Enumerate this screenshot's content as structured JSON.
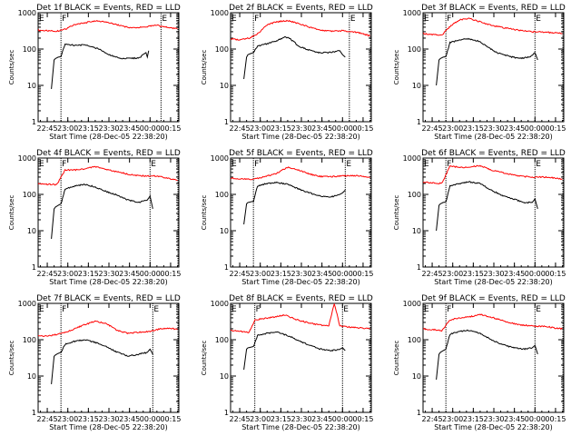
{
  "chart_data": [
    {
      "type": "line",
      "title": "Det 1f BLACK = Events, RED = LLD",
      "ylabel": "Counts/sec",
      "xlabel": "Start Time (28-Dec-05 22:38:20)",
      "x_ticks": [
        "22:45",
        "23:00",
        "23:15",
        "23:30",
        "23:45",
        "00:00",
        "00:15"
      ],
      "y_ticks": [
        "1",
        "10",
        "100",
        "1000"
      ],
      "ylim": [
        1,
        1000
      ],
      "y_scale": "log",
      "markers": [
        {
          "label": "E",
          "x": "22:38"
        },
        {
          "label": "F",
          "x": "22:55"
        },
        {
          "label": "E",
          "x": "00:08"
        }
      ],
      "series": [
        {
          "color": "#ff0000",
          "x": [
            "22:38",
            "22:45",
            "22:52",
            "22:58",
            "23:05",
            "23:12",
            "23:20",
            "23:28",
            "23:38",
            "23:46",
            "23:55",
            "00:05",
            "00:10",
            "00:16",
            "00:20"
          ],
          "y": [
            330,
            320,
            310,
            350,
            470,
            520,
            600,
            550,
            450,
            380,
            400,
            450,
            410,
            380,
            360
          ]
        },
        {
          "color": "#000000",
          "x": [
            "22:48",
            "22:50",
            "22:51",
            "22:53",
            "22:55",
            "22:58",
            "23:05",
            "23:12",
            "23:18",
            "23:24",
            "23:30",
            "23:38",
            "23:45",
            "23:52",
            "23:57",
            "23:58",
            "23:59"
          ],
          "y": [
            8,
            50,
            55,
            60,
            62,
            140,
            125,
            130,
            115,
            95,
            70,
            55,
            55,
            57,
            80,
            60,
            90
          ]
        }
      ]
    },
    {
      "type": "line",
      "title": "Det 2f BLACK = Events, RED = LLD",
      "ylabel": "Counts/sec",
      "xlabel": "Start Time (28-Dec-05 22:38:20)",
      "x_ticks": [
        "22:45",
        "23:00",
        "23:15",
        "23:30",
        "23:45",
        "00:00",
        "00:15"
      ],
      "y_ticks": [
        "1",
        "10",
        "100",
        "1000"
      ],
      "ylim": [
        1,
        1000
      ],
      "y_scale": "log",
      "markers": [
        {
          "label": "E",
          "x": "22:38"
        },
        {
          "label": "F",
          "x": "22:55"
        },
        {
          "label": "E",
          "x": "00:05"
        }
      ],
      "series": [
        {
          "color": "#ff0000",
          "x": [
            "22:38",
            "22:45",
            "22:52",
            "22:58",
            "23:05",
            "23:12",
            "23:20",
            "23:28",
            "23:36",
            "23:44",
            "23:52",
            "00:00",
            "00:08",
            "00:14",
            "00:20"
          ],
          "y": [
            190,
            180,
            200,
            260,
            470,
            560,
            610,
            500,
            400,
            330,
            310,
            320,
            300,
            270,
            230
          ]
        },
        {
          "color": "#000000",
          "x": [
            "22:48",
            "22:50",
            "22:51",
            "22:53",
            "22:55",
            "22:58",
            "23:05",
            "23:12",
            "23:18",
            "23:22",
            "23:28",
            "23:35",
            "23:42",
            "23:50",
            "23:58",
            "00:00",
            "00:02"
          ],
          "y": [
            15,
            60,
            70,
            75,
            80,
            120,
            140,
            170,
            220,
            190,
            120,
            95,
            80,
            80,
            90,
            70,
            60
          ]
        }
      ]
    },
    {
      "type": "line",
      "title": "Det 3f BLACK = Events, RED = LLD",
      "ylabel": "Counts/sec",
      "xlabel": "Start Time (28-Dec-05 22:38:20)",
      "x_ticks": [
        "22:45",
        "23:00",
        "23:15",
        "23:30",
        "23:45",
        "00:00",
        "00:15"
      ],
      "y_ticks": [
        "1",
        "10",
        "100",
        "1000"
      ],
      "ylim": [
        1,
        1000
      ],
      "y_scale": "log",
      "markers": [
        {
          "label": "E",
          "x": "22:38"
        },
        {
          "label": "F",
          "x": "22:55"
        },
        {
          "label": "E",
          "x": "00:00"
        }
      ],
      "series": [
        {
          "color": "#ff0000",
          "x": [
            "22:38",
            "22:45",
            "22:52",
            "22:58",
            "23:05",
            "23:12",
            "23:20",
            "23:28",
            "23:38",
            "23:48",
            "23:58",
            "00:08",
            "00:15",
            "00:20"
          ],
          "y": [
            270,
            250,
            240,
            420,
            640,
            700,
            560,
            450,
            380,
            330,
            300,
            290,
            280,
            270
          ]
        },
        {
          "color": "#000000",
          "x": [
            "22:48",
            "22:50",
            "22:51",
            "22:53",
            "22:55",
            "22:58",
            "23:05",
            "23:12",
            "23:20",
            "23:26",
            "23:32",
            "23:40",
            "23:48",
            "23:56",
            "00:00",
            "00:02"
          ],
          "y": [
            10,
            50,
            55,
            60,
            62,
            150,
            180,
            190,
            160,
            110,
            80,
            65,
            55,
            60,
            80,
            50
          ]
        }
      ]
    },
    {
      "type": "line",
      "title": "Det 4f BLACK = Events, RED = LLD",
      "ylabel": "Counts/sec",
      "xlabel": "Start Time (28-Dec-05 22:38:20)",
      "x_ticks": [
        "22:45",
        "23:00",
        "23:15",
        "23:30",
        "23:45",
        "00:00",
        "00:15"
      ],
      "y_ticks": [
        "1",
        "10",
        "100",
        "1000"
      ],
      "ylim": [
        1,
        1000
      ],
      "y_scale": "log",
      "markers": [
        {
          "label": "E",
          "x": "22:38"
        },
        {
          "label": "F",
          "x": "22:55"
        },
        {
          "label": "E",
          "x": "00:00"
        }
      ],
      "series": [
        {
          "color": "#ff0000",
          "x": [
            "22:38",
            "22:45",
            "22:52",
            "22:58",
            "23:05",
            "23:12",
            "23:20",
            "23:28",
            "23:38",
            "23:48",
            "23:56",
            "00:05",
            "00:12",
            "00:18",
            "00:20"
          ],
          "y": [
            200,
            190,
            185,
            470,
            470,
            500,
            580,
            480,
            400,
            340,
            320,
            320,
            280,
            260,
            240
          ]
        },
        {
          "color": "#000000",
          "x": [
            "22:48",
            "22:50",
            "22:51",
            "22:53",
            "22:55",
            "22:58",
            "23:05",
            "23:12",
            "23:20",
            "23:28",
            "23:36",
            "23:44",
            "23:52",
            "23:58",
            "00:00",
            "00:02"
          ],
          "y": [
            6,
            40,
            45,
            50,
            55,
            140,
            170,
            190,
            160,
            120,
            95,
            70,
            60,
            70,
            90,
            40
          ]
        }
      ]
    },
    {
      "type": "line",
      "title": "Det 5f BLACK = Events, RED = LLD",
      "ylabel": "Counts/sec",
      "xlabel": "Start Time (28-Dec-05 22:38:20)",
      "x_ticks": [
        "22:45",
        "23:00",
        "23:15",
        "23:30",
        "23:45",
        "00:00",
        "00:15"
      ],
      "y_ticks": [
        "1",
        "10",
        "100",
        "1000"
      ],
      "ylim": [
        1,
        1000
      ],
      "y_scale": "log",
      "markers": [
        {
          "label": "E",
          "x": "22:38"
        },
        {
          "label": "F",
          "x": "22:55"
        },
        {
          "label": "E",
          "x": "00:02"
        }
      ],
      "series": [
        {
          "color": "#ff0000",
          "x": [
            "22:38",
            "22:45",
            "22:52",
            "22:58",
            "23:05",
            "23:12",
            "23:20",
            "23:28",
            "23:36",
            "23:44",
            "23:52",
            "00:00",
            "00:08",
            "00:14",
            "00:20"
          ],
          "y": [
            280,
            270,
            260,
            275,
            320,
            380,
            560,
            470,
            360,
            310,
            310,
            320,
            330,
            320,
            290
          ]
        },
        {
          "color": "#000000",
          "x": [
            "22:48",
            "22:50",
            "22:51",
            "22:53",
            "22:55",
            "22:58",
            "23:05",
            "23:12",
            "23:20",
            "23:28",
            "23:36",
            "23:44",
            "23:52",
            "23:58",
            "00:00",
            "00:02"
          ],
          "y": [
            15,
            55,
            60,
            62,
            65,
            170,
            200,
            210,
            190,
            140,
            110,
            90,
            85,
            100,
            110,
            130
          ]
        }
      ]
    },
    {
      "type": "line",
      "title": "Det 6f BLACK = Events, RED = LLD",
      "ylabel": "Counts/sec",
      "xlabel": "Start Time (28-Dec-05 22:38:20)",
      "x_ticks": [
        "22:45",
        "23:00",
        "23:15",
        "23:30",
        "23:45",
        "00:00",
        "00:15"
      ],
      "y_ticks": [
        "1",
        "10",
        "100",
        "1000"
      ],
      "ylim": [
        1,
        1000
      ],
      "y_scale": "log",
      "markers": [
        {
          "label": "E",
          "x": "22:38"
        },
        {
          "label": "F",
          "x": "22:55"
        },
        {
          "label": "E",
          "x": "00:00"
        }
      ],
      "series": [
        {
          "color": "#ff0000",
          "x": [
            "22:38",
            "22:45",
            "22:52",
            "22:58",
            "23:05",
            "23:12",
            "23:20",
            "23:28",
            "23:38",
            "23:48",
            "23:58",
            "00:08",
            "00:15",
            "00:20"
          ],
          "y": [
            220,
            210,
            200,
            600,
            550,
            560,
            620,
            470,
            380,
            320,
            300,
            300,
            280,
            260
          ]
        },
        {
          "color": "#000000",
          "x": [
            "22:48",
            "22:50",
            "22:51",
            "22:53",
            "22:55",
            "22:58",
            "23:05",
            "23:12",
            "23:20",
            "23:28",
            "23:36",
            "23:44",
            "23:52",
            "23:58",
            "00:00",
            "00:02"
          ],
          "y": [
            10,
            50,
            55,
            60,
            62,
            170,
            200,
            220,
            200,
            130,
            95,
            75,
            60,
            60,
            75,
            40
          ]
        }
      ]
    },
    {
      "type": "line",
      "title": "Det 7f BLACK = Events, RED = LLD",
      "ylabel": "Counts/sec",
      "xlabel": "Start Time (28-Dec-05 22:38:20)",
      "x_ticks": [
        "22:45",
        "23:00",
        "23:15",
        "23:30",
        "23:45",
        "00:00",
        "00:15"
      ],
      "y_ticks": [
        "1",
        "10",
        "100",
        "1000"
      ],
      "ylim": [
        1,
        1000
      ],
      "y_scale": "log",
      "markers": [
        {
          "label": "E",
          "x": "22:38"
        },
        {
          "label": "F",
          "x": "22:55"
        },
        {
          "label": "E",
          "x": "00:02"
        }
      ],
      "series": [
        {
          "color": "#ff0000",
          "x": [
            "22:38",
            "22:45",
            "22:52",
            "22:58",
            "23:05",
            "23:12",
            "23:20",
            "23:28",
            "23:36",
            "23:44",
            "23:52",
            "00:00",
            "00:08",
            "00:14",
            "00:20"
          ],
          "y": [
            130,
            125,
            140,
            155,
            200,
            260,
            320,
            280,
            180,
            150,
            160,
            170,
            200,
            210,
            190
          ]
        },
        {
          "color": "#000000",
          "x": [
            "22:48",
            "22:50",
            "22:51",
            "22:53",
            "22:55",
            "22:58",
            "23:05",
            "23:12",
            "23:20",
            "23:28",
            "23:36",
            "23:44",
            "23:52",
            "23:58",
            "00:00",
            "00:02"
          ],
          "y": [
            6,
            35,
            38,
            42,
            45,
            75,
            90,
            100,
            85,
            65,
            45,
            35,
            40,
            45,
            55,
            40
          ]
        }
      ]
    },
    {
      "type": "line",
      "title": "Det 8f BLACK = Events, RED = LLD",
      "ylabel": "Counts/sec",
      "xlabel": "Start Time (28-Dec-05 22:38:20)",
      "x_ticks": [
        "22:45",
        "23:00",
        "23:15",
        "23:30",
        "23:45",
        "00:00",
        "00:15"
      ],
      "y_ticks": [
        "1",
        "10",
        "100",
        "1000"
      ],
      "ylim": [
        1,
        1000
      ],
      "y_scale": "log",
      "markers": [
        {
          "label": "E",
          "x": "22:38"
        },
        {
          "label": "F",
          "x": "22:56"
        },
        {
          "label": "E",
          "x": "00:00"
        }
      ],
      "series": [
        {
          "color": "#ff0000",
          "x": [
            "22:38",
            "22:45",
            "22:52",
            "22:56",
            "23:02",
            "23:10",
            "23:18",
            "23:26",
            "23:34",
            "23:42",
            "23:50",
            "23:54",
            "23:58",
            "00:06",
            "00:14",
            "00:20"
          ],
          "y": [
            180,
            170,
            160,
            350,
            380,
            420,
            480,
            360,
            300,
            260,
            240,
            1000,
            240,
            220,
            210,
            200
          ]
        },
        {
          "color": "#000000",
          "x": [
            "22:48",
            "22:50",
            "22:51",
            "22:53",
            "22:55",
            "22:58",
            "23:05",
            "23:12",
            "23:20",
            "23:28",
            "23:36",
            "23:44",
            "23:52",
            "23:58",
            "00:00",
            "00:02"
          ],
          "y": [
            15,
            55,
            60,
            62,
            65,
            130,
            150,
            160,
            130,
            95,
            70,
            55,
            50,
            55,
            60,
            50
          ]
        }
      ]
    },
    {
      "type": "line",
      "title": "Det 9f BLACK = Events, RED = LLD",
      "ylabel": "Counts/sec",
      "xlabel": "Start Time (28-Dec-05 22:38:20)",
      "x_ticks": [
        "22:45",
        "23:00",
        "23:15",
        "23:30",
        "23:45",
        "00:00",
        "00:15"
      ],
      "y_ticks": [
        "1",
        "10",
        "100",
        "1000"
      ],
      "ylim": [
        1,
        1000
      ],
      "y_scale": "log",
      "markers": [
        {
          "label": "E",
          "x": "22:38"
        },
        {
          "label": "F",
          "x": "22:55"
        },
        {
          "label": "E",
          "x": "00:00"
        }
      ],
      "series": [
        {
          "color": "#ff0000",
          "x": [
            "22:38",
            "22:45",
            "22:52",
            "22:58",
            "23:05",
            "23:12",
            "23:20",
            "23:28",
            "23:38",
            "23:48",
            "23:58",
            "00:08",
            "00:15",
            "00:20"
          ],
          "y": [
            200,
            190,
            180,
            350,
            400,
            420,
            500,
            420,
            320,
            260,
            240,
            230,
            210,
            200
          ]
        },
        {
          "color": "#000000",
          "x": [
            "22:48",
            "22:50",
            "22:51",
            "22:53",
            "22:55",
            "22:58",
            "23:05",
            "23:12",
            "23:20",
            "23:28",
            "23:36",
            "23:44",
            "23:52",
            "23:58",
            "00:00",
            "00:02"
          ],
          "y": [
            8,
            40,
            45,
            50,
            55,
            140,
            170,
            180,
            150,
            100,
            75,
            60,
            55,
            60,
            70,
            40
          ]
        }
      ]
    }
  ]
}
